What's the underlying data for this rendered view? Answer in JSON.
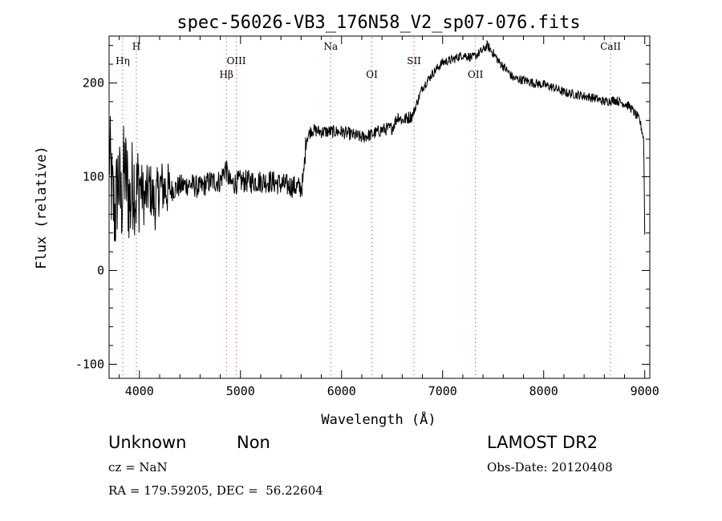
{
  "chart_data": {
    "type": "line",
    "title": "spec-56026-VB3_176N58_V2_sp07-076.fits",
    "xlabel": "Wavelength (Å)",
    "ylabel": "Flux (relative)",
    "xlim": [
      3700,
      9050
    ],
    "ylim": [
      -115,
      250
    ],
    "x_ticks": [
      4000,
      5000,
      6000,
      7000,
      8000,
      9000
    ],
    "y_ticks": [
      -100,
      0,
      100,
      200
    ],
    "grid": false,
    "line_color": "#000000",
    "marker_color": "#cc2222",
    "series": [
      {
        "x": [
          3700,
          3730,
          3760,
          3790,
          3820,
          3850,
          3880,
          3910,
          3940,
          3970,
          4000,
          4050,
          4100,
          4150,
          4200,
          4300,
          4400,
          4500,
          4600,
          4700,
          4800,
          4850,
          4900,
          5000,
          5100,
          5200,
          5300,
          5400,
          5500,
          5600,
          5620,
          5650,
          5700,
          5800,
          5900,
          6000,
          6100,
          6200,
          6300,
          6400,
          6500,
          6560,
          6600,
          6700,
          6800,
          6900,
          7000,
          7100,
          7200,
          7300,
          7400,
          7440,
          7500,
          7560,
          7600,
          7700,
          7800,
          7900,
          8000,
          8100,
          8200,
          8300,
          8400,
          8500,
          8600,
          8700,
          8800,
          8850,
          8900,
          8950,
          8990,
          9000
        ],
        "y": [
          130,
          80,
          60,
          100,
          70,
          110,
          90,
          70,
          100,
          80,
          95,
          75,
          90,
          70,
          90,
          85,
          90,
          92,
          88,
          95,
          95,
          110,
          92,
          95,
          95,
          95,
          95,
          92,
          90,
          88,
          95,
          140,
          150,
          148,
          148,
          148,
          145,
          142,
          145,
          150,
          152,
          165,
          160,
          165,
          195,
          210,
          222,
          225,
          230,
          227,
          235,
          240,
          232,
          222,
          218,
          205,
          203,
          200,
          198,
          195,
          190,
          188,
          186,
          184,
          180,
          182,
          178,
          175,
          168,
          160,
          140,
          40
        ]
      }
    ],
    "lines": [
      {
        "label": "Hη",
        "x": 3835
      },
      {
        "label": "H",
        "x": 3970
      },
      {
        "label": "Hβ",
        "x": 4861
      },
      {
        "label": "OIII",
        "x": 4959
      },
      {
        "label": "Na",
        "x": 5893
      },
      {
        "label": "OI",
        "x": 6300
      },
      {
        "label": "SII",
        "x": 6717
      },
      {
        "label": "OII",
        "x": 7325
      },
      {
        "label": "CaII",
        "x": 8662
      }
    ]
  },
  "info": {
    "object_class": "Unknown",
    "subclass": "Non",
    "cz": "cz = NaN",
    "radec": "RA = 179.59205, DEC =  56.22604",
    "survey": "LAMOST DR2",
    "obs_date": "Obs-Date: 20120408"
  }
}
